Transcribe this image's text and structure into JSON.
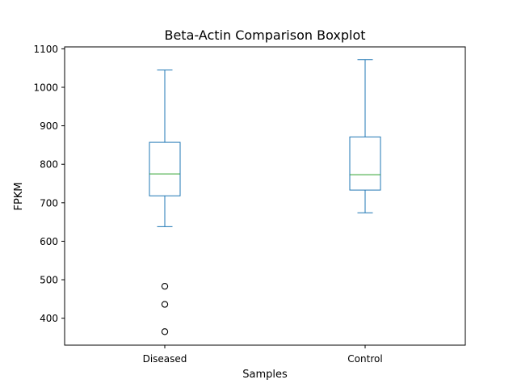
{
  "chart_data": {
    "type": "boxplot",
    "title": "Beta-Actin Comparison Boxplot",
    "xlabel": "Samples",
    "ylabel": "FPKM",
    "categories": [
      "Diseased",
      "Control"
    ],
    "ylim": [
      330,
      1105
    ],
    "yticks": [
      400,
      500,
      600,
      700,
      800,
      900,
      1000,
      1100
    ],
    "grid": false,
    "series": [
      {
        "name": "Diseased",
        "whisker_low": 638,
        "q1": 718,
        "median": 775,
        "q3": 857,
        "whisker_high": 1045,
        "outliers": [
          483,
          436,
          365
        ]
      },
      {
        "name": "Control",
        "whisker_low": 674,
        "q1": 733,
        "median": 773,
        "q3": 871,
        "whisker_high": 1072,
        "outliers": []
      }
    ],
    "colors": {
      "box": "#1f77b4",
      "median": "#2ca02c",
      "outlier": "#000000",
      "axes": "#000000"
    }
  }
}
